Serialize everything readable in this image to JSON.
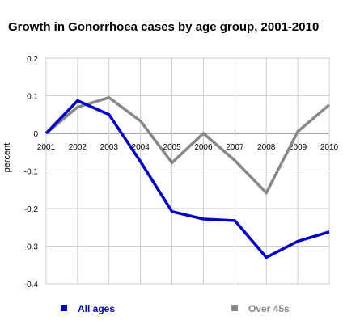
{
  "chart_data": {
    "type": "line",
    "title": "Growth in Gonorrhoea cases by age group, 2001-2010",
    "xlabel": "",
    "ylabel": "percent",
    "categories": [
      "2001",
      "2002",
      "2003",
      "2004",
      "2005",
      "2006",
      "2007",
      "2008",
      "2009",
      "2010"
    ],
    "ylim": [
      -0.4,
      0.2
    ],
    "yticks": [
      0.2,
      0.1,
      0,
      -0.1,
      -0.2,
      -0.3,
      -0.4
    ],
    "ytick_labels": [
      "0.2",
      "0.1",
      "0",
      "-0.1",
      "-0.2",
      "-0.3",
      "-0.4"
    ],
    "grid": true,
    "legend_position": "bottom",
    "series": [
      {
        "name": "All ages",
        "color": "#0000cc",
        "values": [
          0,
          0.087,
          0.05,
          -0.075,
          -0.208,
          -0.228,
          -0.232,
          -0.33,
          -0.287,
          -0.262
        ]
      },
      {
        "name": "Over 45s",
        "color": "#888888",
        "values": [
          0,
          0.07,
          0.095,
          0.033,
          -0.078,
          0,
          -0.072,
          -0.158,
          0.005,
          0.076
        ]
      }
    ]
  }
}
